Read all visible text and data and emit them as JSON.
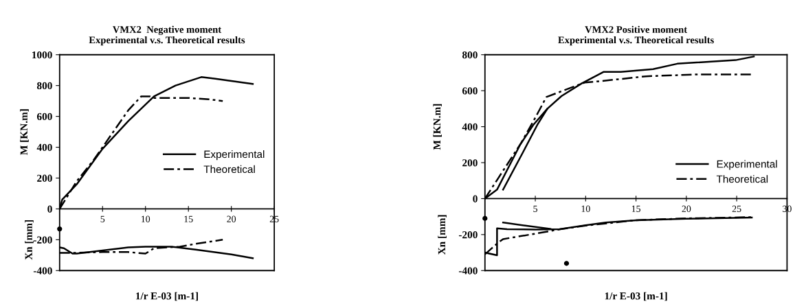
{
  "chart_data": [
    {
      "type": "line",
      "title": "VMX2  Negative moment",
      "subtitle": "Experimental v.s. Theoretical results",
      "xlabel": "1/r E-03 [m-1]",
      "ylabel": "M [KN.m]",
      "annotations": [
        "Xn [mm]"
      ],
      "xlim": [
        0,
        25
      ],
      "xticks": [
        5,
        10,
        15,
        20,
        25
      ],
      "ylim": [
        -400,
        1000
      ],
      "yticks": [
        -400,
        -200,
        0,
        200,
        400,
        600,
        800,
        1000
      ],
      "grid": false,
      "legend": "right",
      "series": [
        {
          "name": "Experimental",
          "color": "#000000",
          "line_style": "solid",
          "x": [
            0,
            0.3,
            2,
            5,
            8,
            11,
            13.5,
            16.5,
            18,
            22.5
          ],
          "values": [
            0,
            60,
            160,
            390,
            570,
            730,
            800,
            855,
            845,
            810
          ]
        },
        {
          "name": "Theoretical",
          "color": "#000000",
          "line_style": "dashdot",
          "x": [
            0,
            2,
            4,
            6,
            8,
            9.5,
            10.5,
            11,
            15,
            17.5,
            19
          ],
          "values": [
            0,
            180,
            320,
            480,
            640,
            730,
            730,
            720,
            720,
            710,
            700
          ]
        },
        {
          "color": "#000000",
          "line_style": "solid",
          "x": [
            0,
            0.5,
            1.5,
            2,
            5,
            8,
            10,
            13,
            16,
            20,
            22.5
          ],
          "values": [
            -250,
            -255,
            -290,
            -290,
            -270,
            -250,
            -245,
            -245,
            -265,
            -295,
            -320
          ]
        },
        {
          "color": "#000000",
          "line_style": "dashdot",
          "x": [
            0,
            2,
            5,
            8,
            10,
            11,
            14,
            16,
            19
          ],
          "values": [
            -285,
            -285,
            -280,
            -280,
            -290,
            -255,
            -245,
            -225,
            -200
          ]
        },
        {
          "type": "scatter",
          "color": "#000000",
          "marker": "circle",
          "x": [
            0
          ],
          "values": [
            -130
          ]
        }
      ]
    },
    {
      "type": "line",
      "title": "VMX2 Positive moment",
      "subtitle": "Experimental v.s. Theoretical results",
      "xlabel": "1/r E-03 [m-1]",
      "ylabel": "M [KN.m]",
      "annotations": [
        "Xn [mm]"
      ],
      "xlim": [
        0,
        30
      ],
      "xticks": [
        5,
        10,
        15,
        20,
        25,
        30
      ],
      "ylim": [
        -400,
        800
      ],
      "yticks": [
        -400,
        -200,
        0,
        200,
        400,
        600,
        800
      ],
      "grid": false,
      "legend": "lower right",
      "series": [
        {
          "name": "Experimental",
          "color": "#000000",
          "line_style": "solid",
          "x": [
            0,
            1.2,
            3.5,
            4.8,
            6.2,
            7.6,
            9.6,
            11.8,
            13.5,
            16.7,
            19.1,
            24.9,
            26.7
          ],
          "values": [
            0,
            50,
            300,
            410,
            500,
            570,
            640,
            705,
            705,
            720,
            750,
            770,
            790
          ]
        },
        {
          "name": "Theoretical",
          "color": "#000000",
          "line_style": "dashdot",
          "x": [
            0,
            3.6,
            5,
            6.1,
            8.7,
            9.9,
            11.8,
            16,
            20.9,
            26.5
          ],
          "values": [
            0,
            310,
            450,
            565,
            620,
            645,
            655,
            680,
            690,
            690
          ]
        },
        {
          "color": "#000000",
          "line_style": "solid",
          "x": [
            1.8,
            3.8,
            5.2,
            6.2
          ],
          "values": [
            50,
            260,
            410,
            500
          ]
        },
        {
          "color": "#000000",
          "line_style": "solid",
          "x": [
            0,
            1.2,
            1.2,
            2.2,
            5,
            7.4,
            10,
            12,
            15,
            20,
            26.5
          ],
          "values": [
            -300,
            -315,
            -165,
            -170,
            -172,
            -170,
            -148,
            -133,
            -120,
            -112,
            -105
          ]
        },
        {
          "color": "#000000",
          "line_style": "solid",
          "x": [
            1.8,
            4,
            6.5
          ],
          "values": [
            -133,
            -150,
            -168
          ]
        },
        {
          "color": "#000000",
          "line_style": "dashdot",
          "x": [
            0,
            1.2,
            1.8,
            5,
            7.5,
            10,
            15,
            20,
            26.5
          ],
          "values": [
            -310,
            -250,
            -225,
            -195,
            -170,
            -150,
            -120,
            -110,
            -103
          ]
        },
        {
          "type": "scatter",
          "color": "#000000",
          "marker": "circle",
          "x": [
            0,
            8.1
          ],
          "values": [
            -110,
            -360
          ]
        }
      ]
    }
  ]
}
